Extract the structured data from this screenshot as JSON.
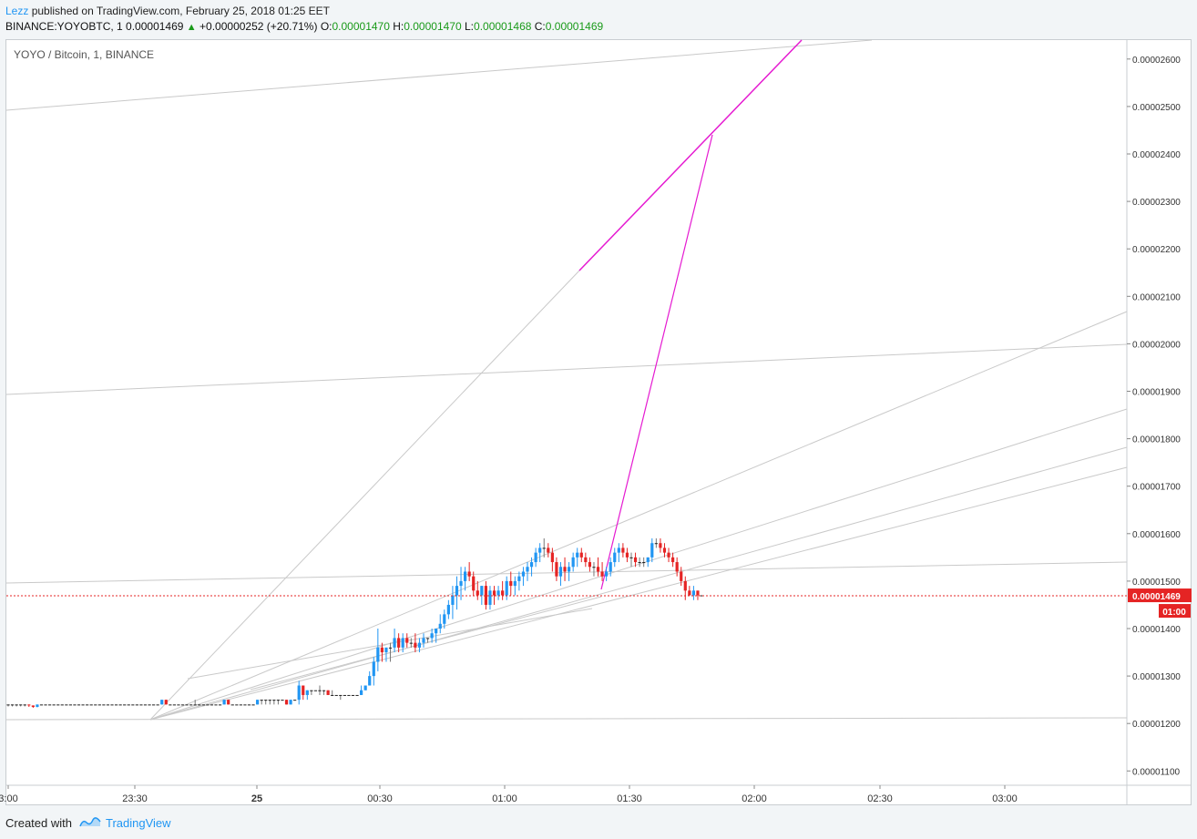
{
  "header": {
    "author": "Lezz",
    "published_text": " published on TradingView.com, February 25, 2018 01:25 EET"
  },
  "quote": {
    "symbol": "BINANCE:YOYOBTC, 1",
    "last": "0.00001469",
    "change": "+0.00000252 (+20.71%)",
    "o_label": "O:",
    "o_value": "0.00001470",
    "h_label": "H:",
    "h_value": "0.00001470",
    "l_label": "L:",
    "l_value": "0.00001468",
    "c_label": "C:",
    "c_value": "0.00001469"
  },
  "footer": {
    "created_with": "Created with",
    "brand": "TradingView"
  },
  "colors": {
    "up": "#2196f3",
    "down": "#e52424",
    "flat": "#1f1f1f",
    "projection": "#e51ad1",
    "trendline": "#c9c9c9",
    "price_line": "#e52424"
  },
  "chart_data": {
    "type": "candlestick",
    "title": "YOYO / Bitcoin, 1, BINANCE",
    "ylim": [
      1.05e-05,
      2.7e-05
    ],
    "y_ticks": [
      "0.00001100",
      "0.00001200",
      "0.00001300",
      "0.00001400",
      "0.00001500",
      "0.00001600",
      "0.00001700",
      "0.00001800",
      "0.00001900",
      "0.00002000",
      "0.00002100",
      "0.00002200",
      "0.00002300",
      "0.00002400",
      "0.00002500",
      "0.00002600"
    ],
    "x_ticks": [
      "3:00",
      "23:30",
      "25",
      "00:30",
      "01:00",
      "01:30",
      "02:00",
      "02:30",
      "03:00"
    ],
    "last_price_label": "0.00001469",
    "countdown_label": "01:00",
    "candles": [
      [
        0,
        1.24e-05,
        1.24e-05,
        1.236e-05,
        1.24e-05
      ],
      [
        1,
        1.24e-05,
        1.24e-05,
        1.236e-05,
        1.24e-05
      ],
      [
        2,
        1.24e-05,
        1.24e-05,
        1.236e-05,
        1.24e-05
      ],
      [
        3,
        1.24e-05,
        1.24e-05,
        1.236e-05,
        1.24e-05
      ],
      [
        4,
        1.24e-05,
        1.24e-05,
        1.236e-05,
        1.24e-05
      ],
      [
        5,
        1.24e-05,
        1.24e-05,
        1.235e-05,
        1.238e-05
      ],
      [
        6,
        1.238e-05,
        1.238e-05,
        1.233e-05,
        1.235e-05
      ],
      [
        7,
        1.235e-05,
        1.24e-05,
        1.234e-05,
        1.24e-05
      ],
      [
        8,
        1.24e-05,
        1.24e-05,
        1.24e-05,
        1.24e-05
      ],
      [
        9,
        1.24e-05,
        1.24e-05,
        1.24e-05,
        1.24e-05
      ],
      [
        10,
        1.24e-05,
        1.24e-05,
        1.24e-05,
        1.24e-05
      ],
      [
        11,
        1.24e-05,
        1.24e-05,
        1.24e-05,
        1.24e-05
      ],
      [
        12,
        1.24e-05,
        1.24e-05,
        1.24e-05,
        1.24e-05
      ],
      [
        13,
        1.24e-05,
        1.24e-05,
        1.24e-05,
        1.24e-05
      ],
      [
        14,
        1.24e-05,
        1.24e-05,
        1.24e-05,
        1.24e-05
      ],
      [
        15,
        1.24e-05,
        1.24e-05,
        1.24e-05,
        1.24e-05
      ],
      [
        16,
        1.24e-05,
        1.24e-05,
        1.24e-05,
        1.24e-05
      ],
      [
        17,
        1.24e-05,
        1.24e-05,
        1.24e-05,
        1.24e-05
      ],
      [
        18,
        1.24e-05,
        1.24e-05,
        1.24e-05,
        1.24e-05
      ],
      [
        19,
        1.24e-05,
        1.24e-05,
        1.24e-05,
        1.24e-05
      ],
      [
        20,
        1.24e-05,
        1.24e-05,
        1.24e-05,
        1.24e-05
      ],
      [
        21,
        1.24e-05,
        1.24e-05,
        1.24e-05,
        1.24e-05
      ],
      [
        22,
        1.24e-05,
        1.24e-05,
        1.24e-05,
        1.24e-05
      ],
      [
        23,
        1.24e-05,
        1.24e-05,
        1.24e-05,
        1.24e-05
      ],
      [
        24,
        1.24e-05,
        1.24e-05,
        1.24e-05,
        1.24e-05
      ],
      [
        25,
        1.24e-05,
        1.24e-05,
        1.24e-05,
        1.24e-05
      ],
      [
        26,
        1.24e-05,
        1.24e-05,
        1.24e-05,
        1.24e-05
      ],
      [
        27,
        1.24e-05,
        1.24e-05,
        1.24e-05,
        1.24e-05
      ],
      [
        28,
        1.24e-05,
        1.24e-05,
        1.24e-05,
        1.24e-05
      ],
      [
        29,
        1.24e-05,
        1.24e-05,
        1.24e-05,
        1.24e-05
      ],
      [
        30,
        1.24e-05,
        1.24e-05,
        1.24e-05,
        1.24e-05
      ],
      [
        31,
        1.24e-05,
        1.24e-05,
        1.24e-05,
        1.24e-05
      ],
      [
        32,
        1.24e-05,
        1.24e-05,
        1.24e-05,
        1.24e-05
      ],
      [
        33,
        1.24e-05,
        1.24e-05,
        1.24e-05,
        1.24e-05
      ],
      [
        34,
        1.24e-05,
        1.24e-05,
        1.24e-05,
        1.24e-05
      ],
      [
        35,
        1.24e-05,
        1.24e-05,
        1.24e-05,
        1.24e-05
      ],
      [
        36,
        1.24e-05,
        1.24e-05,
        1.24e-05,
        1.24e-05
      ],
      [
        37,
        1.24e-05,
        1.25e-05,
        1.24e-05,
        1.25e-05
      ],
      [
        38,
        1.25e-05,
        1.25e-05,
        1.24e-05,
        1.24e-05
      ],
      [
        39,
        1.24e-05,
        1.24e-05,
        1.24e-05,
        1.24e-05
      ],
      [
        40,
        1.24e-05,
        1.24e-05,
        1.24e-05,
        1.24e-05
      ],
      [
        41,
        1.24e-05,
        1.24e-05,
        1.24e-05,
        1.24e-05
      ],
      [
        42,
        1.24e-05,
        1.24e-05,
        1.24e-05,
        1.24e-05
      ],
      [
        43,
        1.24e-05,
        1.24e-05,
        1.24e-05,
        1.24e-05
      ],
      [
        44,
        1.24e-05,
        1.24e-05,
        1.24e-05,
        1.24e-05
      ],
      [
        45,
        1.24e-05,
        1.25e-05,
        1.24e-05,
        1.24e-05
      ],
      [
        46,
        1.24e-05,
        1.24e-05,
        1.24e-05,
        1.24e-05
      ],
      [
        47,
        1.24e-05,
        1.24e-05,
        1.24e-05,
        1.24e-05
      ],
      [
        48,
        1.24e-05,
        1.24e-05,
        1.24e-05,
        1.24e-05
      ],
      [
        49,
        1.24e-05,
        1.24e-05,
        1.24e-05,
        1.24e-05
      ],
      [
        50,
        1.24e-05,
        1.24e-05,
        1.24e-05,
        1.24e-05
      ],
      [
        51,
        1.24e-05,
        1.24e-05,
        1.24e-05,
        1.24e-05
      ],
      [
        52,
        1.24e-05,
        1.25e-05,
        1.24e-05,
        1.25e-05
      ],
      [
        53,
        1.25e-05,
        1.25e-05,
        1.24e-05,
        1.24e-05
      ],
      [
        54,
        1.24e-05,
        1.24e-05,
        1.24e-05,
        1.24e-05
      ],
      [
        55,
        1.24e-05,
        1.24e-05,
        1.24e-05,
        1.24e-05
      ],
      [
        56,
        1.24e-05,
        1.24e-05,
        1.24e-05,
        1.24e-05
      ],
      [
        57,
        1.24e-05,
        1.24e-05,
        1.24e-05,
        1.24e-05
      ],
      [
        58,
        1.24e-05,
        1.24e-05,
        1.24e-05,
        1.24e-05
      ],
      [
        59,
        1.24e-05,
        1.24e-05,
        1.24e-05,
        1.24e-05
      ],
      [
        60,
        1.24e-05,
        1.25e-05,
        1.24e-05,
        1.25e-05
      ],
      [
        61,
        1.25e-05,
        1.25e-05,
        1.24e-05,
        1.25e-05
      ],
      [
        62,
        1.25e-05,
        1.25e-05,
        1.24e-05,
        1.25e-05
      ],
      [
        63,
        1.25e-05,
        1.25e-05,
        1.24e-05,
        1.25e-05
      ],
      [
        64,
        1.25e-05,
        1.25e-05,
        1.24e-05,
        1.25e-05
      ],
      [
        65,
        1.25e-05,
        1.25e-05,
        1.24e-05,
        1.25e-05
      ],
      [
        66,
        1.25e-05,
        1.25e-05,
        1.25e-05,
        1.25e-05
      ],
      [
        67,
        1.25e-05,
        1.25e-05,
        1.24e-05,
        1.24e-05
      ],
      [
        68,
        1.24e-05,
        1.25e-05,
        1.24e-05,
        1.25e-05
      ],
      [
        69,
        1.25e-05,
        1.25e-05,
        1.25e-05,
        1.25e-05
      ],
      [
        70,
        1.25e-05,
        1.29e-05,
        1.24e-05,
        1.28e-05
      ],
      [
        71,
        1.28e-05,
        1.28e-05,
        1.25e-05,
        1.26e-05
      ],
      [
        72,
        1.26e-05,
        1.27e-05,
        1.25e-05,
        1.27e-05
      ],
      [
        73,
        1.27e-05,
        1.27e-05,
        1.26e-05,
        1.27e-05
      ],
      [
        74,
        1.27e-05,
        1.27e-05,
        1.27e-05,
        1.27e-05
      ],
      [
        75,
        1.27e-05,
        1.28e-05,
        1.26e-05,
        1.27e-05
      ],
      [
        76,
        1.27e-05,
        1.27e-05,
        1.26e-05,
        1.27e-05
      ],
      [
        77,
        1.27e-05,
        1.27e-05,
        1.26e-05,
        1.26e-05
      ],
      [
        78,
        1.26e-05,
        1.27e-05,
        1.26e-05,
        1.26e-05
      ],
      [
        79,
        1.26e-05,
        1.26e-05,
        1.26e-05,
        1.26e-05
      ],
      [
        80,
        1.26e-05,
        1.26e-05,
        1.25e-05,
        1.26e-05
      ],
      [
        81,
        1.26e-05,
        1.26e-05,
        1.26e-05,
        1.26e-05
      ],
      [
        82,
        1.26e-05,
        1.26e-05,
        1.26e-05,
        1.26e-05
      ],
      [
        83,
        1.26e-05,
        1.26e-05,
        1.26e-05,
        1.26e-05
      ],
      [
        84,
        1.26e-05,
        1.26e-05,
        1.26e-05,
        1.26e-05
      ],
      [
        85,
        1.26e-05,
        1.28e-05,
        1.26e-05,
        1.27e-05
      ],
      [
        86,
        1.27e-05,
        1.28e-05,
        1.27e-05,
        1.28e-05
      ],
      [
        87,
        1.28e-05,
        1.31e-05,
        1.28e-05,
        1.3e-05
      ],
      [
        88,
        1.3e-05,
        1.34e-05,
        1.28e-05,
        1.33e-05
      ],
      [
        89,
        1.33e-05,
        1.4e-05,
        1.31e-05,
        1.36e-05
      ],
      [
        90,
        1.36e-05,
        1.37e-05,
        1.33e-05,
        1.35e-05
      ],
      [
        91,
        1.35e-05,
        1.36e-05,
        1.33e-05,
        1.36e-05
      ],
      [
        92,
        1.36e-05,
        1.37e-05,
        1.33e-05,
        1.36e-05
      ],
      [
        93,
        1.36e-05,
        1.4e-05,
        1.35e-05,
        1.38e-05
      ],
      [
        94,
        1.38e-05,
        1.39e-05,
        1.35e-05,
        1.36e-05
      ],
      [
        95,
        1.36e-05,
        1.39e-05,
        1.35e-05,
        1.38e-05
      ],
      [
        96,
        1.38e-05,
        1.39e-05,
        1.36e-05,
        1.37e-05
      ],
      [
        97,
        1.37e-05,
        1.38e-05,
        1.36e-05,
        1.37e-05
      ],
      [
        98,
        1.37e-05,
        1.39e-05,
        1.35e-05,
        1.36e-05
      ],
      [
        99,
        1.36e-05,
        1.38e-05,
        1.35e-05,
        1.37e-05
      ],
      [
        100,
        1.37e-05,
        1.39e-05,
        1.36e-05,
        1.38e-05
      ],
      [
        101,
        1.38e-05,
        1.38e-05,
        1.37e-05,
        1.38e-05
      ],
      [
        102,
        1.38e-05,
        1.4e-05,
        1.37e-05,
        1.39e-05
      ],
      [
        103,
        1.39e-05,
        1.4e-05,
        1.37e-05,
        1.4e-05
      ],
      [
        104,
        1.4e-05,
        1.43e-05,
        1.39e-05,
        1.41e-05
      ],
      [
        105,
        1.41e-05,
        1.44e-05,
        1.4e-05,
        1.43e-05
      ],
      [
        106,
        1.43e-05,
        1.46e-05,
        1.42e-05,
        1.45e-05
      ],
      [
        107,
        1.45e-05,
        1.49e-05,
        1.42e-05,
        1.47e-05
      ],
      [
        108,
        1.47e-05,
        1.51e-05,
        1.44e-05,
        1.49e-05
      ],
      [
        109,
        1.49e-05,
        1.53e-05,
        1.46e-05,
        1.5e-05
      ],
      [
        110,
        1.5e-05,
        1.53e-05,
        1.48e-05,
        1.52e-05
      ],
      [
        111,
        1.52e-05,
        1.54e-05,
        1.5e-05,
        1.51e-05
      ],
      [
        112,
        1.51e-05,
        1.52e-05,
        1.47e-05,
        1.48e-05
      ],
      [
        113,
        1.48e-05,
        1.5e-05,
        1.46e-05,
        1.47e-05
      ],
      [
        114,
        1.47e-05,
        1.49e-05,
        1.45e-05,
        1.49e-05
      ],
      [
        115,
        1.49e-05,
        1.5e-05,
        1.44e-05,
        1.45e-05
      ],
      [
        116,
        1.45e-05,
        1.49e-05,
        1.44e-05,
        1.48e-05
      ],
      [
        117,
        1.48e-05,
        1.49e-05,
        1.45e-05,
        1.47e-05
      ],
      [
        118,
        1.47e-05,
        1.49e-05,
        1.46e-05,
        1.48e-05
      ],
      [
        119,
        1.48e-05,
        1.5e-05,
        1.46e-05,
        1.47e-05
      ],
      [
        120,
        1.47e-05,
        1.51e-05,
        1.46e-05,
        1.5e-05
      ],
      [
        121,
        1.5e-05,
        1.52e-05,
        1.47e-05,
        1.49e-05
      ],
      [
        122,
        1.49e-05,
        1.51e-05,
        1.47e-05,
        1.5e-05
      ],
      [
        123,
        1.5e-05,
        1.52e-05,
        1.48e-05,
        1.51e-05
      ],
      [
        124,
        1.51e-05,
        1.53e-05,
        1.49e-05,
        1.52e-05
      ],
      [
        125,
        1.52e-05,
        1.54e-05,
        1.5e-05,
        1.53e-05
      ],
      [
        126,
        1.53e-05,
        1.55e-05,
        1.51e-05,
        1.54e-05
      ],
      [
        127,
        1.54e-05,
        1.57e-05,
        1.53e-05,
        1.56e-05
      ],
      [
        128,
        1.56e-05,
        1.58e-05,
        1.54e-05,
        1.57e-05
      ],
      [
        129,
        1.57e-05,
        1.59e-05,
        1.55e-05,
        1.57e-05
      ],
      [
        130,
        1.57e-05,
        1.58e-05,
        1.55e-05,
        1.56e-05
      ],
      [
        131,
        1.56e-05,
        1.57e-05,
        1.52e-05,
        1.54e-05
      ],
      [
        132,
        1.54e-05,
        1.55e-05,
        1.5e-05,
        1.51e-05
      ],
      [
        133,
        1.51e-05,
        1.54e-05,
        1.49e-05,
        1.53e-05
      ],
      [
        134,
        1.53e-05,
        1.55e-05,
        1.5e-05,
        1.52e-05
      ],
      [
        135,
        1.52e-05,
        1.54e-05,
        1.5e-05,
        1.53e-05
      ],
      [
        136,
        1.53e-05,
        1.56e-05,
        1.52e-05,
        1.55e-05
      ],
      [
        137,
        1.55e-05,
        1.57e-05,
        1.53e-05,
        1.56e-05
      ],
      [
        138,
        1.56e-05,
        1.57e-05,
        1.54e-05,
        1.55e-05
      ],
      [
        139,
        1.55e-05,
        1.56e-05,
        1.53e-05,
        1.54e-05
      ],
      [
        140,
        1.54e-05,
        1.55e-05,
        1.52e-05,
        1.53e-05
      ],
      [
        141,
        1.53e-05,
        1.54e-05,
        1.51e-05,
        1.53e-05
      ],
      [
        142,
        1.53e-05,
        1.55e-05,
        1.51e-05,
        1.52e-05
      ],
      [
        143,
        1.52e-05,
        1.54e-05,
        1.5e-05,
        1.51e-05
      ],
      [
        144,
        1.51e-05,
        1.53e-05,
        1.5e-05,
        1.52e-05
      ],
      [
        145,
        1.52e-05,
        1.55e-05,
        1.51e-05,
        1.54e-05
      ],
      [
        146,
        1.54e-05,
        1.57e-05,
        1.53e-05,
        1.56e-05
      ],
      [
        147,
        1.56e-05,
        1.58e-05,
        1.54e-05,
        1.57e-05
      ],
      [
        148,
        1.57e-05,
        1.58e-05,
        1.55e-05,
        1.56e-05
      ],
      [
        149,
        1.56e-05,
        1.57e-05,
        1.54e-05,
        1.55e-05
      ],
      [
        150,
        1.55e-05,
        1.56e-05,
        1.53e-05,
        1.55e-05
      ],
      [
        151,
        1.55e-05,
        1.56e-05,
        1.53e-05,
        1.54e-05
      ],
      [
        152,
        1.54e-05,
        1.55e-05,
        1.53e-05,
        1.54e-05
      ],
      [
        153,
        1.54e-05,
        1.55e-05,
        1.53e-05,
        1.54e-05
      ],
      [
        154,
        1.54e-05,
        1.55e-05,
        1.53e-05,
        1.55e-05
      ],
      [
        155,
        1.55e-05,
        1.59e-05,
        1.54e-05,
        1.58e-05
      ],
      [
        156,
        1.58e-05,
        1.59e-05,
        1.57e-05,
        1.58e-05
      ],
      [
        157,
        1.58e-05,
        1.59e-05,
        1.56e-05,
        1.57e-05
      ],
      [
        158,
        1.57e-05,
        1.58e-05,
        1.55e-05,
        1.56e-05
      ],
      [
        159,
        1.56e-05,
        1.57e-05,
        1.54e-05,
        1.55e-05
      ],
      [
        160,
        1.55e-05,
        1.56e-05,
        1.53e-05,
        1.54e-05
      ],
      [
        161,
        1.54e-05,
        1.55e-05,
        1.51e-05,
        1.52e-05
      ],
      [
        162,
        1.52e-05,
        1.53e-05,
        1.49e-05,
        1.5e-05
      ],
      [
        163,
        1.5e-05,
        1.51e-05,
        1.46e-05,
        1.48e-05
      ],
      [
        164,
        1.48e-05,
        1.49e-05,
        1.47e-05,
        1.47e-05
      ],
      [
        165,
        1.47e-05,
        1.49e-05,
        1.46e-05,
        1.48e-05
      ],
      [
        166,
        1.48e-05,
        1.48e-05,
        1.46e-05,
        1.47e-05
      ],
      [
        167,
        1.47e-05,
        1.47e-05,
        1.47e-05,
        1.47e-05
      ]
    ]
  }
}
